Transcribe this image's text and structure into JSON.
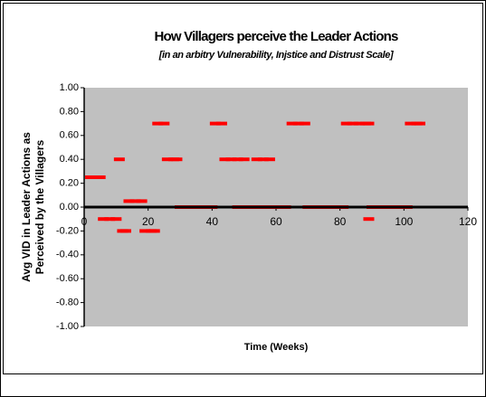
{
  "chart_data": {
    "type": "scatter",
    "title": "How Villagers perceive the Leader Actions",
    "subtitle": "[in an arbitry Vulnerability, Injstice and Distrust Scale]",
    "x_label": "Time (Weeks)",
    "y_label": [
      "Avg VID in Leader Actions as",
      "Perceived by the Villagers"
    ],
    "series": [
      {
        "color": "#ff0000",
        "x": [
          2,
          4,
          5,
          6,
          8,
          10,
          11,
          12,
          13,
          14,
          16,
          18,
          19,
          21,
          22,
          23,
          25,
          26,
          28,
          29,
          30,
          32,
          34,
          36,
          38,
          40,
          41,
          43,
          44,
          46,
          48,
          50,
          48,
          50,
          52,
          54,
          56,
          58,
          60,
          62,
          63,
          54,
          56,
          58,
          65,
          67,
          69,
          70,
          72,
          74,
          76,
          78,
          80,
          81,
          82,
          84,
          86,
          88,
          89,
          89,
          90,
          92,
          94,
          96,
          98,
          100,
          101,
          102,
          104,
          105
        ],
        "values": [
          0.25,
          0.25,
          0.25,
          -0.1,
          -0.1,
          -0.1,
          0.4,
          -0.2,
          -0.2,
          0.05,
          0.05,
          0.05,
          -0.2,
          -0.2,
          -0.2,
          0.7,
          0.7,
          0.4,
          0.4,
          0.4,
          0,
          0,
          0,
          0,
          0,
          0,
          0.7,
          0.7,
          0.4,
          0.4,
          0.4,
          0.4,
          0,
          0,
          0,
          0,
          0,
          0,
          0,
          0,
          0,
          0.4,
          0.4,
          0.4,
          0.7,
          0.7,
          0.7,
          0,
          0,
          0,
          0,
          0,
          0,
          0,
          0.7,
          0.7,
          0.7,
          0.7,
          0.7,
          -0.1,
          0,
          0,
          0,
          0,
          0,
          0,
          0,
          0.7,
          0.7,
          0.7
        ]
      }
    ],
    "xlim": [
      0,
      120
    ],
    "xticks": [
      0,
      20,
      40,
      60,
      80,
      100,
      120
    ],
    "ylim": [
      -1,
      1
    ],
    "yticks": [
      {
        "value": 1,
        "label": "1.00"
      },
      {
        "value": 0.8,
        "label": "0.80"
      },
      {
        "value": 0.6,
        "label": "0.60"
      },
      {
        "value": 0.4,
        "label": "0.40"
      },
      {
        "value": 0.2,
        "label": "0.20"
      },
      {
        "value": 0,
        "label": "0.00"
      },
      {
        "value": -0.2,
        "label": "-0.20"
      },
      {
        "value": -0.4,
        "label": "-0.40"
      },
      {
        "value": -0.6,
        "label": "-0.60"
      },
      {
        "value": -0.8,
        "label": "-0.80"
      },
      {
        "value": -1,
        "label": "-1.00"
      }
    ],
    "plot_background": "#c0c0c0"
  }
}
